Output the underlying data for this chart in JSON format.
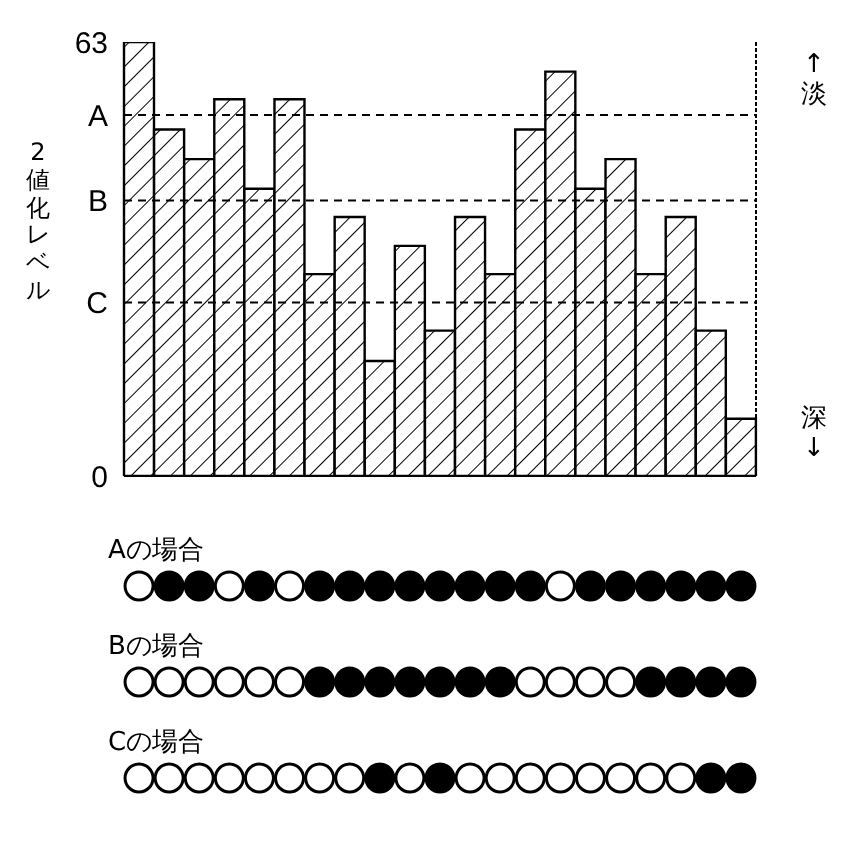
{
  "chart_data": {
    "type": "bar",
    "ylabel": "2値化レベル",
    "categories": [
      null,
      null,
      null,
      null,
      null,
      null,
      null,
      null,
      null,
      null,
      null,
      null,
      null,
      null,
      null,
      null,
      null,
      null,
      null,
      null,
      null
    ],
    "values": [
      63,
      50.3,
      46,
      54.7,
      41.7,
      54.7,
      29.3,
      37.6,
      16.7,
      33.4,
      21.1,
      37.6,
      29.3,
      50.3,
      58.7,
      41.7,
      46,
      29.3,
      37.6,
      21.1,
      8.3
    ],
    "color": "#000000",
    "ylim": [
      0,
      63
    ],
    "yticks": [
      0,
      {
        "value": 25.2,
        "label": "C"
      },
      {
        "value": 40,
        "label": "B"
      },
      {
        "value": 52.4,
        "label": "A"
      },
      63
    ],
    "ref_lines": [
      {
        "axis": "y",
        "value": 52.4,
        "line_style": "dashed"
      },
      {
        "axis": "y",
        "value": 40,
        "line_style": "dashed"
      },
      {
        "axis": "y",
        "value": 25.2,
        "line_style": "dashed"
      }
    ],
    "annotations": [
      "Aの場合",
      "Bの場合",
      "Cの場合",
      "↑淡",
      "深↓"
    ]
  }
}
